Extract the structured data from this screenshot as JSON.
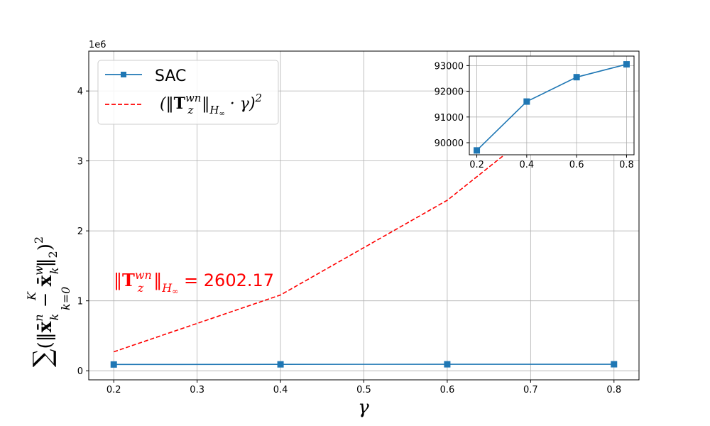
{
  "chart_data": [
    {
      "type": "line",
      "x": [
        0.2,
        0.4,
        0.6,
        0.8
      ],
      "xticks": [
        "0.2",
        "0.3",
        "0.4",
        "0.5",
        "0.6",
        "0.7",
        "0.8"
      ],
      "yticks": [
        "0",
        "1",
        "2",
        "3",
        "4"
      ],
      "y_scale_label": "1e6",
      "xlabel": "γ",
      "ylabel": "Σ_{k=0}^{K} (‖x̄_k^n − x̄_k^w‖₂)²",
      "xlim": [
        0.17,
        0.83
      ],
      "ylim": [
        -130000,
        4570000
      ],
      "grid": true,
      "legend_position": "upper-left",
      "series": [
        {
          "name": "SAC",
          "values": [
            89700,
            91600,
            92550,
            93050
          ],
          "color": "#1f77b4",
          "style": "solid",
          "marker": "square"
        },
        {
          "name": "(‖T_z^{wn}‖_{H∞} · γ)²",
          "values": [
            270850,
            1083400,
            2437650,
            4333600
          ],
          "color": "#ff0000",
          "style": "dashed",
          "marker": "none"
        }
      ],
      "annotation": "‖T_z^{wn}‖_{H∞} = 2602.17",
      "annotation_color": "#ff0000"
    },
    {
      "type": "line",
      "inset": true,
      "x": [
        0.2,
        0.4,
        0.6,
        0.8
      ],
      "xticks": [
        "0.2",
        "0.4",
        "0.6",
        "0.8"
      ],
      "yticks": [
        "90000",
        "91000",
        "92000",
        "93000"
      ],
      "xlim": [
        0.17,
        0.83
      ],
      "ylim": [
        89530,
        93370
      ],
      "grid": true,
      "series": [
        {
          "name": "SAC",
          "values": [
            89700,
            91600,
            92550,
            93050
          ],
          "color": "#1f77b4",
          "style": "solid",
          "marker": "square"
        }
      ]
    }
  ]
}
